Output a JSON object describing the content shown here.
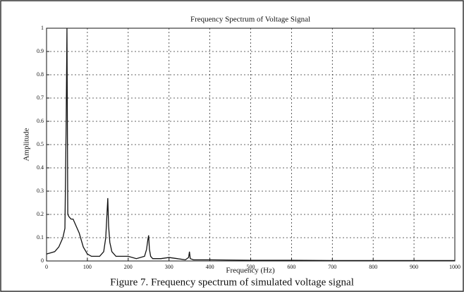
{
  "chart_data": {
    "type": "line",
    "title": "Frequency Spectrum of Voltage Signal",
    "x_label": "Frequency (Hz)",
    "y_label": "Amplitude",
    "caption": "Figure 7. Frequency spectrum of simulated voltage signal",
    "x": [
      0,
      10,
      20,
      30,
      40,
      45,
      48,
      50,
      52,
      55,
      60,
      65,
      70,
      80,
      90,
      100,
      110,
      120,
      130,
      140,
      145,
      148,
      150,
      152,
      155,
      160,
      170,
      180,
      200,
      220,
      240,
      245,
      248,
      250,
      252,
      255,
      260,
      280,
      300,
      320,
      340,
      348,
      350,
      352,
      360,
      400,
      500,
      600,
      700,
      800,
      900,
      1000
    ],
    "series": [
      {
        "name": "Amplitude",
        "color": "#111111",
        "values": [
          0.03,
          0.035,
          0.04,
          0.06,
          0.1,
          0.14,
          0.58,
          1.0,
          0.2,
          0.19,
          0.18,
          0.18,
          0.16,
          0.12,
          0.06,
          0.03,
          0.02,
          0.02,
          0.02,
          0.04,
          0.1,
          0.2,
          0.27,
          0.15,
          0.08,
          0.04,
          0.02,
          0.02,
          0.02,
          0.01,
          0.02,
          0.05,
          0.09,
          0.11,
          0.05,
          0.02,
          0.01,
          0.01,
          0.015,
          0.01,
          0.005,
          0.015,
          0.04,
          0.01,
          0.005,
          0.005,
          0.003,
          0.003,
          0.002,
          0.002,
          0.002,
          0.002
        ]
      }
    ],
    "xlim": [
      0,
      1000
    ],
    "ylim": [
      0,
      1
    ],
    "xticks": [
      0,
      100,
      200,
      300,
      400,
      500,
      600,
      700,
      800,
      900,
      1000
    ],
    "yticks": [
      0,
      0.1,
      0.2,
      0.3,
      0.4,
      0.5,
      0.6,
      0.7,
      0.8,
      0.9,
      1
    ],
    "grid": true
  }
}
